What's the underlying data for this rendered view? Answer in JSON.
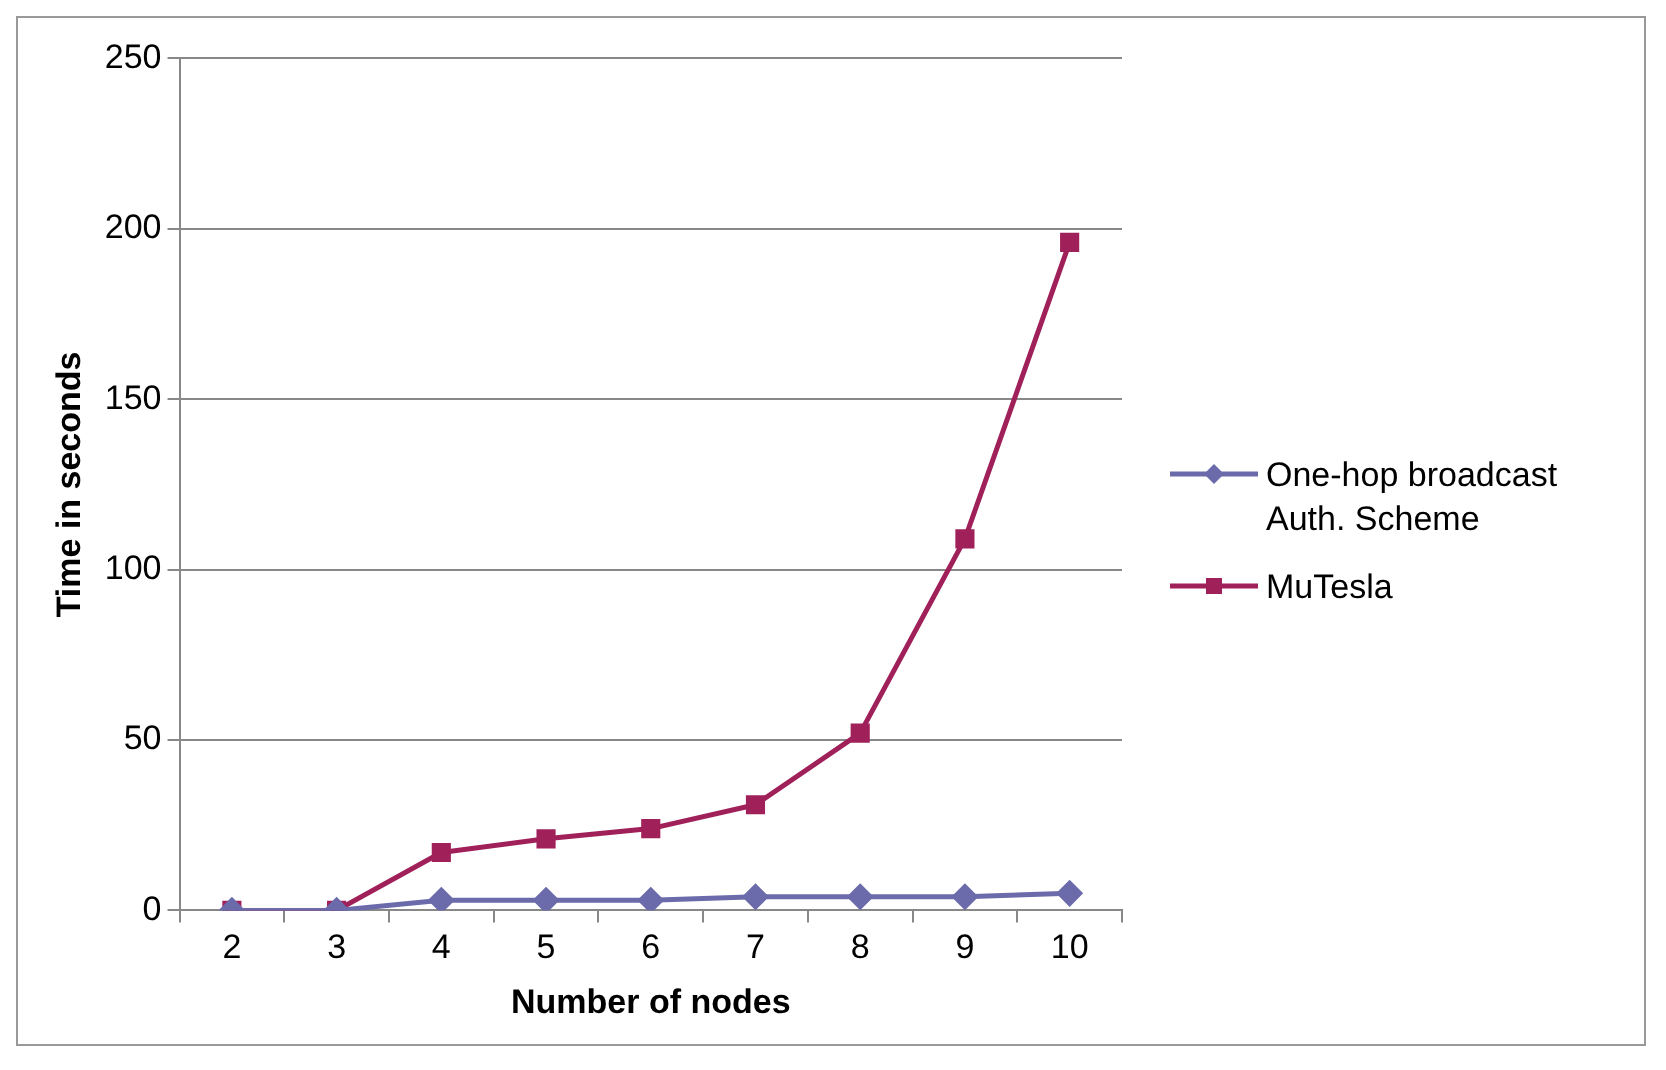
{
  "chart_data": {
    "type": "line",
    "xlabel": "Number of nodes",
    "ylabel": "Time in seconds",
    "categories": [
      "2",
      "3",
      "4",
      "5",
      "6",
      "7",
      "8",
      "9",
      "10"
    ],
    "series": [
      {
        "name": "One-hop broadcast Auth. Scheme",
        "color": "#6b6bab",
        "marker": "diamond",
        "values": [
          0,
          0,
          3,
          3,
          3,
          4,
          4,
          4,
          5
        ]
      },
      {
        "name": "MuTesla",
        "color": "#a0205a",
        "marker": "square",
        "values": [
          0,
          0,
          17,
          21,
          24,
          31,
          52,
          109,
          196
        ]
      }
    ],
    "ylim": [
      0,
      250
    ],
    "yticks": [
      0,
      50,
      100,
      150,
      200,
      250
    ],
    "grid": "y",
    "legend": "right",
    "line_style": "solid"
  }
}
